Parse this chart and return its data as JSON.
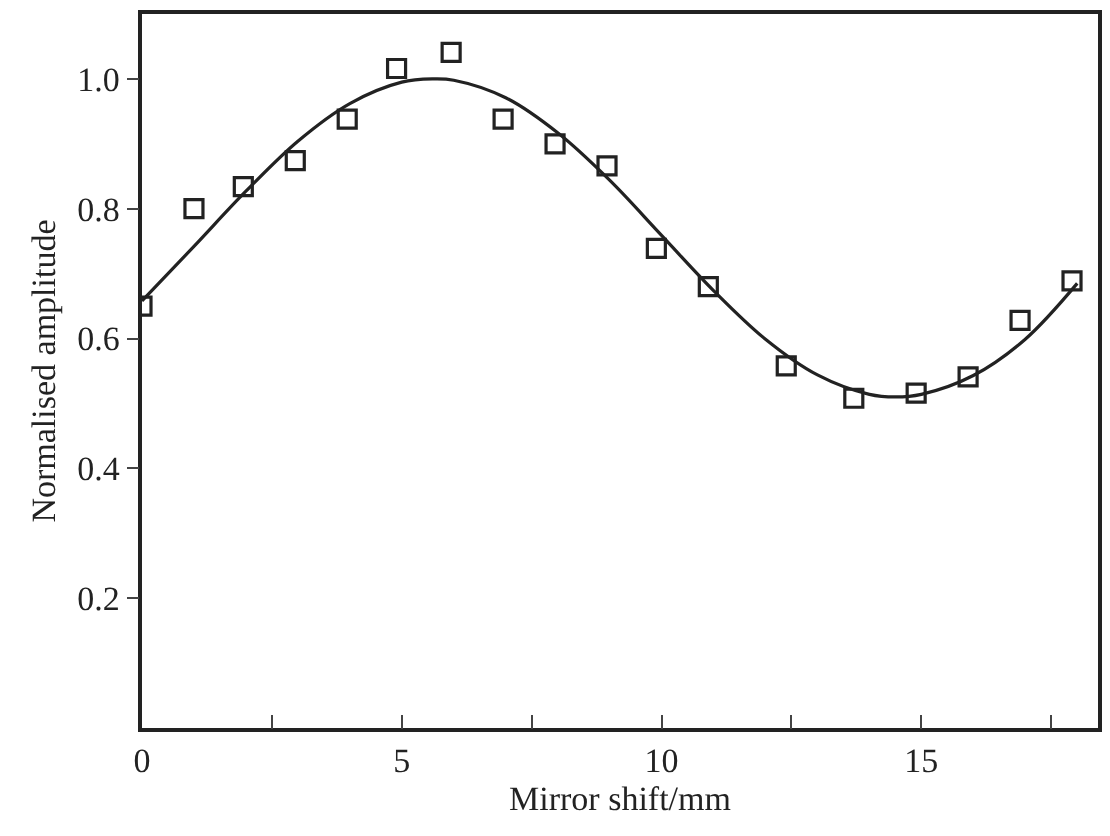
{
  "chart_data": {
    "type": "scatter",
    "xlabel": "Mirror shift/mm",
    "ylabel": "Normalised amplitude",
    "xlim": [
      0,
      18.4
    ],
    "ylim": [
      0,
      1.1
    ],
    "xticks": [
      0,
      {
        "value": 2.5,
        "label": null
      },
      5,
      {
        "value": 7.5,
        "label": null
      },
      10,
      {
        "value": 12.5,
        "label": null
      },
      15,
      {
        "value": 17.5,
        "label": null
      }
    ],
    "yticks": [
      0.2,
      0.4,
      0.6,
      0.8,
      {
        "value": 1,
        "label": "1.0"
      }
    ],
    "legend": false,
    "series": [
      {
        "marker": "square",
        "color": "#222222",
        "x": [
          0,
          1,
          1.95,
          2.95,
          3.95,
          4.9,
          5.95,
          6.95,
          7.95,
          8.95,
          9.9,
          10.9,
          12.4,
          13.7,
          14.9,
          15.9,
          16.9,
          17.9
        ],
        "values": [
          0.65,
          0.8,
          0.834,
          0.874,
          0.938,
          1.016,
          1.041,
          0.938,
          0.9,
          0.866,
          0.739,
          0.68,
          0.558,
          0.508,
          0.516,
          0.541,
          0.628,
          0.689
        ]
      },
      {
        "type": "line",
        "marker": "none",
        "line_style": "solid",
        "color": "#222222",
        "x": [
          0,
          1,
          2,
          3,
          4,
          5,
          5.6,
          6,
          7,
          8,
          9,
          10,
          11,
          12,
          13,
          14,
          14.5,
          15,
          16,
          17,
          18
        ],
        "values": [
          0.658,
          0.742,
          0.827,
          0.904,
          0.962,
          0.995,
          1.0,
          0.998,
          0.971,
          0.917,
          0.844,
          0.759,
          0.674,
          0.599,
          0.544,
          0.514,
          0.51,
          0.514,
          0.543,
          0.599,
          0.685
        ]
      }
    ]
  }
}
